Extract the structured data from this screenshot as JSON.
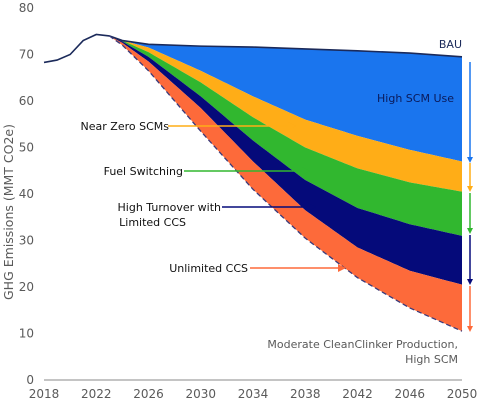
{
  "chart_data": {
    "type": "area",
    "ylabel": "GHG Emissions (MMT CO2e)",
    "xlabel": "",
    "xlim": [
      2018,
      2050
    ],
    "ylim": [
      0,
      80
    ],
    "x_ticks": [
      "2018",
      "2022",
      "2026",
      "2030",
      "2034",
      "2038",
      "2042",
      "2046",
      "2050"
    ],
    "y_ticks": [
      "0",
      "10",
      "20",
      "30",
      "40",
      "50",
      "60",
      "70",
      "80"
    ],
    "grid": false,
    "colors": {
      "high_scm_use": "#1a75ee",
      "near_zero_scms": "#ffad17",
      "fuel_switching": "#31b72f",
      "high_turnover": "#050a7a",
      "unlimited_ccs": "#fd6a3a",
      "bau_line": "#1b2a5a",
      "axis_text": "#5a5a5a"
    },
    "boundaries": [
      {
        "name": "BAU",
        "x": [
          2018,
          2019,
          2020,
          2021,
          2022,
          2023,
          2024,
          2026,
          2030,
          2034,
          2038,
          2042,
          2046,
          2050
        ],
        "y": [
          68.3,
          68.8,
          70.0,
          73.0,
          74.3,
          74.0,
          73.0,
          72.2,
          71.8,
          71.6,
          71.2,
          70.8,
          70.3,
          69.5
        ]
      },
      {
        "name": "After High SCM Use",
        "x": [
          2023,
          2024,
          2026,
          2030,
          2034,
          2038,
          2042,
          2046,
          2050
        ],
        "y": [
          74.0,
          73.0,
          71.5,
          66.5,
          61.0,
          56.0,
          52.5,
          49.5,
          47.0
        ]
      },
      {
        "name": "After Near Zero SCMs",
        "x": [
          2023,
          2024,
          2026,
          2030,
          2034,
          2038,
          2042,
          2046,
          2050
        ],
        "y": [
          74.0,
          73.0,
          70.5,
          64.0,
          56.5,
          50.0,
          45.5,
          42.5,
          40.5
        ]
      },
      {
        "name": "After Fuel Switching",
        "x": [
          2023,
          2024,
          2026,
          2030,
          2034,
          2038,
          2042,
          2046,
          2050
        ],
        "y": [
          74.0,
          72.8,
          69.5,
          61.0,
          51.5,
          43.0,
          37.0,
          33.5,
          31.0
        ]
      },
      {
        "name": "After High Turnover with Limited CCS",
        "x": [
          2023,
          2024,
          2026,
          2030,
          2034,
          2038,
          2042,
          2046,
          2050
        ],
        "y": [
          74.0,
          72.5,
          68.5,
          58.5,
          47.0,
          36.5,
          28.5,
          23.5,
          20.5
        ]
      },
      {
        "name": "Moderate CleanClinker Production, High SCM",
        "x": [
          2023,
          2024,
          2026,
          2030,
          2034,
          2038,
          2042,
          2046,
          2050
        ],
        "y": [
          74.0,
          72.0,
          66.5,
          53.5,
          41.0,
          30.5,
          22.0,
          15.5,
          10.5
        ]
      }
    ],
    "annotations": [
      {
        "text": "BAU"
      },
      {
        "text": "High SCM Use"
      },
      {
        "text": "Near Zero SCMs"
      },
      {
        "text": "Fuel Switching"
      },
      {
        "text": "High Turnover with",
        "text2": "Limited CCS"
      },
      {
        "text": "Unlimited CCS"
      },
      {
        "text": "Moderate CleanClinker Production,",
        "text2": "High SCM"
      }
    ]
  }
}
